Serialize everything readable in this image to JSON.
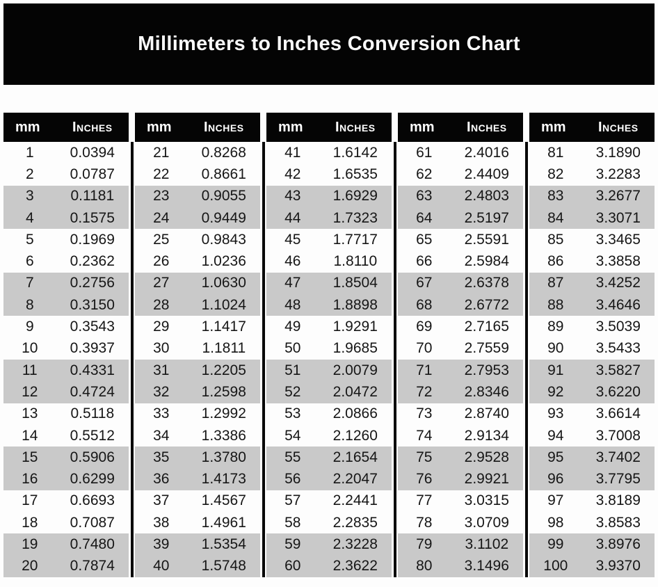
{
  "title": "Millimeters to Inches Conversion Chart",
  "column_headers": {
    "mm_label": "mm",
    "inches_label": "Inches"
  },
  "colors": {
    "banner_bg": "#040404",
    "header_bg": "#050505",
    "stripe": "#c9c9c9",
    "divider": "#070707",
    "header_text": "#ffffff",
    "body_text": "#161616"
  },
  "table": {
    "groups": [
      {
        "rows": [
          [
            "1",
            "0.0394"
          ],
          [
            "2",
            "0.0787"
          ],
          [
            "3",
            "0.1181"
          ],
          [
            "4",
            "0.1575"
          ],
          [
            "5",
            "0.1969"
          ],
          [
            "6",
            "0.2362"
          ],
          [
            "7",
            "0.2756"
          ],
          [
            "8",
            "0.3150"
          ],
          [
            "9",
            "0.3543"
          ],
          [
            "10",
            "0.3937"
          ],
          [
            "11",
            "0.4331"
          ],
          [
            "12",
            "0.4724"
          ],
          [
            "13",
            "0.5118"
          ],
          [
            "14",
            "0.5512"
          ],
          [
            "15",
            "0.5906"
          ],
          [
            "16",
            "0.6299"
          ],
          [
            "17",
            "0.6693"
          ],
          [
            "18",
            "0.7087"
          ],
          [
            "19",
            "0.7480"
          ],
          [
            "20",
            "0.7874"
          ]
        ]
      },
      {
        "rows": [
          [
            "21",
            "0.8268"
          ],
          [
            "22",
            "0.8661"
          ],
          [
            "23",
            "0.9055"
          ],
          [
            "24",
            "0.9449"
          ],
          [
            "25",
            "0.9843"
          ],
          [
            "26",
            "1.0236"
          ],
          [
            "27",
            "1.0630"
          ],
          [
            "28",
            "1.1024"
          ],
          [
            "29",
            "1.1417"
          ],
          [
            "30",
            "1.1811"
          ],
          [
            "31",
            "1.2205"
          ],
          [
            "32",
            "1.2598"
          ],
          [
            "33",
            "1.2992"
          ],
          [
            "34",
            "1.3386"
          ],
          [
            "35",
            "1.3780"
          ],
          [
            "36",
            "1.4173"
          ],
          [
            "37",
            "1.4567"
          ],
          [
            "38",
            "1.4961"
          ],
          [
            "39",
            "1.5354"
          ],
          [
            "40",
            "1.5748"
          ]
        ]
      },
      {
        "rows": [
          [
            "41",
            "1.6142"
          ],
          [
            "42",
            "1.6535"
          ],
          [
            "43",
            "1.6929"
          ],
          [
            "44",
            "1.7323"
          ],
          [
            "45",
            "1.7717"
          ],
          [
            "46",
            "1.8110"
          ],
          [
            "47",
            "1.8504"
          ],
          [
            "48",
            "1.8898"
          ],
          [
            "49",
            "1.9291"
          ],
          [
            "50",
            "1.9685"
          ],
          [
            "51",
            "2.0079"
          ],
          [
            "52",
            "2.0472"
          ],
          [
            "53",
            "2.0866"
          ],
          [
            "54",
            "2.1260"
          ],
          [
            "55",
            "2.1654"
          ],
          [
            "56",
            "2.2047"
          ],
          [
            "57",
            "2.2441"
          ],
          [
            "58",
            "2.2835"
          ],
          [
            "59",
            "2.3228"
          ],
          [
            "60",
            "2.3622"
          ]
        ]
      },
      {
        "rows": [
          [
            "61",
            "2.4016"
          ],
          [
            "62",
            "2.4409"
          ],
          [
            "63",
            "2.4803"
          ],
          [
            "64",
            "2.5197"
          ],
          [
            "65",
            "2.5591"
          ],
          [
            "66",
            "2.5984"
          ],
          [
            "67",
            "2.6378"
          ],
          [
            "68",
            "2.6772"
          ],
          [
            "69",
            "2.7165"
          ],
          [
            "70",
            "2.7559"
          ],
          [
            "71",
            "2.7953"
          ],
          [
            "72",
            "2.8346"
          ],
          [
            "73",
            "2.8740"
          ],
          [
            "74",
            "2.9134"
          ],
          [
            "75",
            "2.9528"
          ],
          [
            "76",
            "2.9921"
          ],
          [
            "77",
            "3.0315"
          ],
          [
            "78",
            "3.0709"
          ],
          [
            "79",
            "3.1102"
          ],
          [
            "80",
            "3.1496"
          ]
        ]
      },
      {
        "rows": [
          [
            "81",
            "3.1890"
          ],
          [
            "82",
            "3.2283"
          ],
          [
            "83",
            "3.2677"
          ],
          [
            "84",
            "3.3071"
          ],
          [
            "85",
            "3.3465"
          ],
          [
            "86",
            "3.3858"
          ],
          [
            "87",
            "3.4252"
          ],
          [
            "88",
            "3.4646"
          ],
          [
            "89",
            "3.5039"
          ],
          [
            "90",
            "3.5433"
          ],
          [
            "91",
            "3.5827"
          ],
          [
            "92",
            "3.6220"
          ],
          [
            "93",
            "3.6614"
          ],
          [
            "94",
            "3.7008"
          ],
          [
            "95",
            "3.7402"
          ],
          [
            "96",
            "3.7795"
          ],
          [
            "97",
            "3.8189"
          ],
          [
            "98",
            "3.8583"
          ],
          [
            "99",
            "3.8976"
          ],
          [
            "100",
            "3.9370"
          ]
        ]
      }
    ]
  }
}
